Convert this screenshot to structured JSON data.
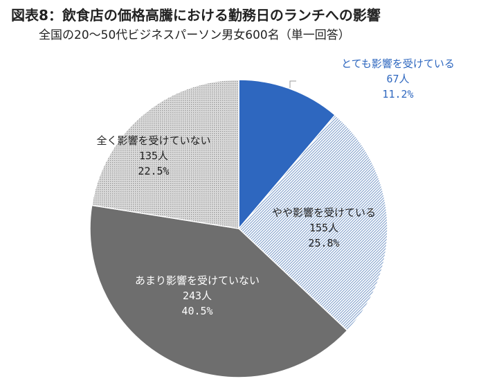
{
  "chart_data": {
    "type": "pie",
    "title": "図表8：飲食店の価格高騰における勤務日のランチへの影響",
    "subtitle": "全国の20～50代ビジネスパーソン男女600名（単一回答）",
    "slices": [
      {
        "label": "とても影響を受けている",
        "count": "67人",
        "percent": "11.2%",
        "value": 11.2,
        "color": "#2e67bf",
        "pattern": "solid"
      },
      {
        "label": "やや影響を受けている",
        "count": "155人",
        "percent": "25.8%",
        "value": 25.8,
        "color": "#a9c0dd",
        "pattern": "diagonal-blue"
      },
      {
        "label": "あまり影響を受けていない",
        "count": "243人",
        "percent": "40.5%",
        "value": 40.5,
        "color": "#6e6e6e",
        "pattern": "solid"
      },
      {
        "label": "全く影響を受けていない",
        "count": "135人",
        "percent": "22.5%",
        "value": 22.5,
        "color": "#c6c6c6",
        "pattern": "dotted-gray"
      }
    ]
  }
}
